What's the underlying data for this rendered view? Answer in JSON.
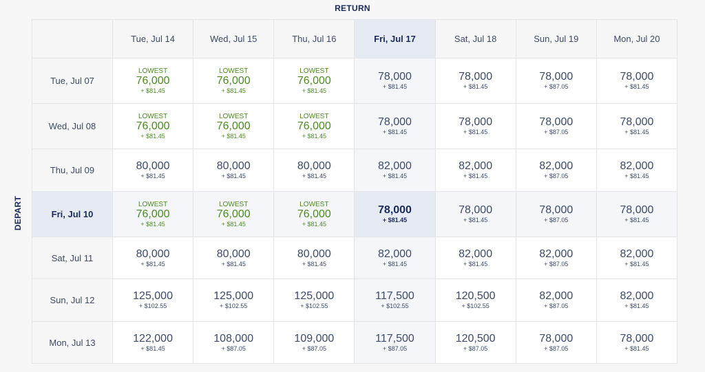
{
  "return_label": "RETURN",
  "depart_label": "DEPART",
  "lowest_label": "LOWEST",
  "selected": {
    "return_index": 3,
    "depart_index": 3
  },
  "colors": {
    "lowest": "#4b8a20",
    "navy": "#1a2a5c",
    "highlight": "#e6ebf3"
  },
  "return_dates": [
    "Tue, Jul 14",
    "Wed, Jul 15",
    "Thu, Jul 16",
    "Fri, Jul 17",
    "Sat, Jul 18",
    "Sun, Jul 19",
    "Mon, Jul 20"
  ],
  "rows": [
    {
      "depart": "Tue, Jul 07",
      "cells": [
        {
          "points": "76,000",
          "tax": "+ $81.45",
          "lowest": true
        },
        {
          "points": "76,000",
          "tax": "+ $81.45",
          "lowest": true
        },
        {
          "points": "76,000",
          "tax": "+ $81.45",
          "lowest": true
        },
        {
          "points": "78,000",
          "tax": "+ $81.45"
        },
        {
          "points": "78,000",
          "tax": "+ $81.45"
        },
        {
          "points": "78,000",
          "tax": "+ $87.05"
        },
        {
          "points": "78,000",
          "tax": "+ $81.45"
        }
      ]
    },
    {
      "depart": "Wed, Jul 08",
      "cells": [
        {
          "points": "76,000",
          "tax": "+ $81.45",
          "lowest": true
        },
        {
          "points": "76,000",
          "tax": "+ $81.45",
          "lowest": true
        },
        {
          "points": "76,000",
          "tax": "+ $81.45",
          "lowest": true
        },
        {
          "points": "78,000",
          "tax": "+ $81.45"
        },
        {
          "points": "78,000",
          "tax": "+ $81.45"
        },
        {
          "points": "78,000",
          "tax": "+ $87.05"
        },
        {
          "points": "78,000",
          "tax": "+ $81.45"
        }
      ]
    },
    {
      "depart": "Thu, Jul 09",
      "cells": [
        {
          "points": "80,000",
          "tax": "+ $81.45"
        },
        {
          "points": "80,000",
          "tax": "+ $81.45"
        },
        {
          "points": "80,000",
          "tax": "+ $81.45"
        },
        {
          "points": "82,000",
          "tax": "+ $81.45"
        },
        {
          "points": "82,000",
          "tax": "+ $81.45"
        },
        {
          "points": "82,000",
          "tax": "+ $87.05"
        },
        {
          "points": "82,000",
          "tax": "+ $81.45"
        }
      ]
    },
    {
      "depart": "Fri, Jul 10",
      "cells": [
        {
          "points": "76,000",
          "tax": "+ $81.45",
          "lowest": true
        },
        {
          "points": "76,000",
          "tax": "+ $81.45",
          "lowest": true
        },
        {
          "points": "76,000",
          "tax": "+ $81.45",
          "lowest": true
        },
        {
          "points": "78,000",
          "tax": "+ $81.45"
        },
        {
          "points": "78,000",
          "tax": "+ $81.45"
        },
        {
          "points": "78,000",
          "tax": "+ $87.05"
        },
        {
          "points": "78,000",
          "tax": "+ $81.45"
        }
      ]
    },
    {
      "depart": "Sat, Jul 11",
      "cells": [
        {
          "points": "80,000",
          "tax": "+ $81.45"
        },
        {
          "points": "80,000",
          "tax": "+ $81.45"
        },
        {
          "points": "80,000",
          "tax": "+ $81.45"
        },
        {
          "points": "82,000",
          "tax": "+ $81.45"
        },
        {
          "points": "82,000",
          "tax": "+ $81.45"
        },
        {
          "points": "82,000",
          "tax": "+ $87.05"
        },
        {
          "points": "82,000",
          "tax": "+ $81.45"
        }
      ]
    },
    {
      "depart": "Sun, Jul 12",
      "cells": [
        {
          "points": "125,000",
          "tax": "+ $102.55"
        },
        {
          "points": "125,000",
          "tax": "+ $102.55"
        },
        {
          "points": "125,000",
          "tax": "+ $102.55"
        },
        {
          "points": "117,500",
          "tax": "+ $102.55"
        },
        {
          "points": "120,500",
          "tax": "+ $102.55"
        },
        {
          "points": "82,000",
          "tax": "+ $87.05"
        },
        {
          "points": "82,000",
          "tax": "+ $81.45"
        }
      ]
    },
    {
      "depart": "Mon, Jul 13",
      "cells": [
        {
          "points": "122,000",
          "tax": "+ $81.45"
        },
        {
          "points": "108,000",
          "tax": "+ $87.05"
        },
        {
          "points": "109,000",
          "tax": "+ $87.05"
        },
        {
          "points": "117,500",
          "tax": "+ $87.05"
        },
        {
          "points": "120,500",
          "tax": "+ $87.05"
        },
        {
          "points": "78,000",
          "tax": "+ $87.05"
        },
        {
          "points": "78,000",
          "tax": "+ $81.45"
        }
      ]
    }
  ]
}
